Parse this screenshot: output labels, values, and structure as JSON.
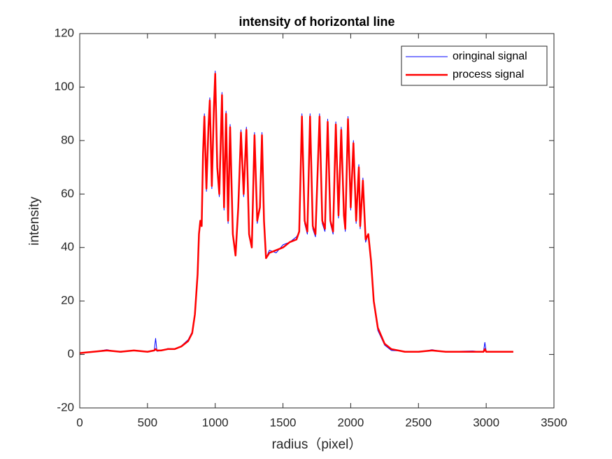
{
  "chart_data": {
    "type": "line",
    "title": "intensity of horizontal line",
    "xlabel": "radius（pixel）",
    "ylabel": "intensity",
    "x": [
      0,
      100,
      200,
      300,
      400,
      500,
      550,
      560,
      570,
      600,
      650,
      700,
      750,
      800,
      830,
      850,
      870,
      880,
      890,
      900,
      910,
      920,
      935,
      950,
      960,
      975,
      990,
      1000,
      1015,
      1030,
      1050,
      1065,
      1080,
      1095,
      1110,
      1130,
      1150,
      1170,
      1190,
      1210,
      1230,
      1250,
      1270,
      1290,
      1310,
      1330,
      1345,
      1360,
      1375,
      1400,
      1450,
      1500,
      1550,
      1600,
      1620,
      1640,
      1660,
      1680,
      1700,
      1720,
      1740,
      1770,
      1790,
      1810,
      1830,
      1850,
      1870,
      1890,
      1910,
      1930,
      1950,
      1960,
      1980,
      2000,
      2020,
      2040,
      2060,
      2070,
      2090,
      2110,
      2130,
      2150,
      2170,
      2200,
      2250,
      2300,
      2400,
      2500,
      2600,
      2700,
      2800,
      2900,
      2980,
      2990,
      3000,
      3100,
      3200
    ],
    "series": [
      {
        "name": "oringinal signal",
        "color": "#0000ff",
        "width": 1,
        "values": [
          0.5,
          1,
          1.8,
          0.8,
          1.6,
          0.9,
          1.5,
          6,
          1.2,
          1.4,
          2.2,
          2.1,
          3.2,
          5.5,
          8.5,
          15,
          30,
          46,
          50,
          48,
          75,
          90,
          61,
          86,
          96,
          62,
          93,
          106,
          69,
          59,
          98,
          54,
          91,
          49,
          86,
          44,
          37,
          55,
          84,
          59,
          85,
          44,
          40,
          83,
          49,
          55,
          83,
          49,
          36,
          39,
          38,
          41,
          42,
          44,
          46,
          90,
          49,
          45,
          90,
          47,
          44,
          90,
          49,
          46,
          88,
          49,
          45,
          87,
          51,
          85,
          51,
          46,
          89,
          54,
          80,
          49,
          71,
          47,
          66,
          42,
          45,
          35,
          19,
          9,
          3.5,
          1.5,
          1.2,
          0.8,
          1.8,
          0.9,
          1.2,
          1.3,
          1,
          4.5,
          1.2,
          1.1,
          0.9
        ]
      },
      {
        "name": "process signal",
        "color": "#ff0000",
        "width": 2.5,
        "values": [
          0.5,
          1,
          1.5,
          1,
          1.5,
          1,
          1.5,
          2,
          1.5,
          1.5,
          2,
          2,
          3,
          5,
          8,
          15,
          30,
          45,
          50,
          48,
          75,
          89,
          62,
          85,
          95,
          63,
          92,
          105,
          70,
          60,
          97,
          55,
          90,
          50,
          85,
          45,
          37,
          55,
          83,
          60,
          84,
          45,
          40,
          82,
          50,
          55,
          82,
          50,
          36,
          38,
          39,
          40,
          42,
          43,
          46,
          89,
          50,
          46,
          89,
          48,
          45,
          89,
          50,
          47,
          87,
          50,
          46,
          86,
          52,
          84,
          52,
          47,
          88,
          55,
          79,
          50,
          70,
          48,
          65,
          43,
          45,
          35,
          20,
          10,
          4,
          2,
          1,
          1,
          1.5,
          1,
          1,
          1,
          1,
          2,
          1,
          1,
          1
        ]
      }
    ],
    "xlim": [
      0,
      3500
    ],
    "xticks": [
      0,
      500,
      1000,
      1500,
      2000,
      2500,
      3000,
      3500
    ],
    "ylim": [
      -20,
      120
    ],
    "yticks": [
      -20,
      0,
      20,
      40,
      60,
      80,
      100,
      120
    ],
    "legend": "upper right",
    "grid": false
  }
}
